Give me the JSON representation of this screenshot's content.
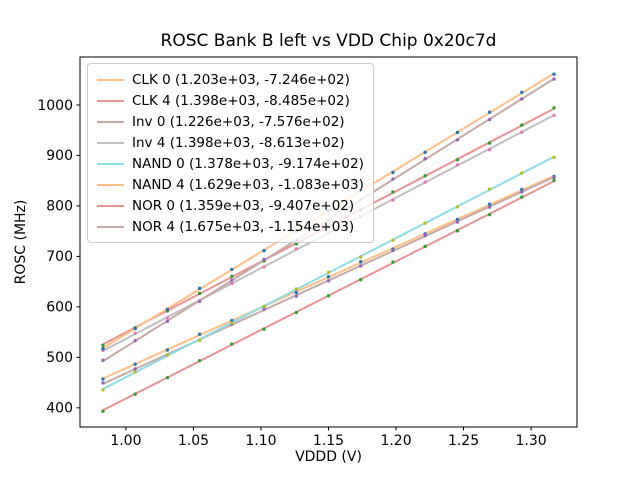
{
  "chart_data": {
    "type": "scatter",
    "title": "ROSC Bank B left vs VDD Chip 0x20c7d",
    "xlabel": "VDDD (V)",
    "ylabel": "ROSC (MHz)",
    "xlim": [
      0.966,
      1.334
    ],
    "ylim": [
      362,
      1095
    ],
    "x_ticks": [
      1.0,
      1.05,
      1.1,
      1.15,
      1.2,
      1.25,
      1.3
    ],
    "x_tick_labels": [
      "1.00",
      "1.05",
      "1.10",
      "1.15",
      "1.20",
      "1.25",
      "1.30"
    ],
    "y_ticks": [
      400,
      500,
      600,
      700,
      800,
      900,
      1000
    ],
    "y_tick_labels": [
      "400",
      "500",
      "600",
      "700",
      "800",
      "900",
      "1000"
    ],
    "grid": false,
    "legend_position": "upper left",
    "x_start": 0.983,
    "x_end": 1.317,
    "points_per_series": 15,
    "axis_color": "#000000",
    "legend_border_color": "#cccccc",
    "series": [
      {
        "name": "CLK 0",
        "legend_label": "CLK 0 (1.203e+03, -7.246e+02)",
        "slope": 1203.0,
        "intercept": -724.6,
        "line_color": "#ffbf86",
        "marker_color": "#1f77b4"
      },
      {
        "name": "CLK 4",
        "legend_label": "CLK 4 (1.398e+03, -8.485e+02)",
        "slope": 1398.0,
        "intercept": -848.5,
        "line_color": "#ea9393",
        "marker_color": "#2ca02c"
      },
      {
        "name": "Inv 0",
        "legend_label": "Inv 0 (1.226e+03, -7.576e+02)",
        "slope": 1226.0,
        "intercept": -757.6,
        "line_color": "#c5aaa5",
        "marker_color": "#9467bd"
      },
      {
        "name": "Inv 4",
        "legend_label": "Inv 4 (1.398e+03, -8.613e+02)",
        "slope": 1398.0,
        "intercept": -861.3,
        "line_color": "#bfbfbf",
        "marker_color": "#e377c2"
      },
      {
        "name": "NAND 0",
        "legend_label": "NAND 0 (1.378e+03, -9.174e+02)",
        "slope": 1378.0,
        "intercept": -917.4,
        "line_color": "#8bdee7",
        "marker_color": "#bcbd22"
      },
      {
        "name": "NAND 4",
        "legend_label": "NAND 4 (1.629e+03, -1.083e+03)",
        "slope": 1629.0,
        "intercept": -1083.0,
        "line_color": "#ffbf86",
        "marker_color": "#1f77b4"
      },
      {
        "name": "NOR 0",
        "legend_label": "NOR 0 (1.359e+03, -9.407e+02)",
        "slope": 1359.0,
        "intercept": -940.7,
        "line_color": "#ea9393",
        "marker_color": "#2ca02c"
      },
      {
        "name": "NOR 4",
        "legend_label": "NOR 4 (1.675e+03, -1.154e+03)",
        "slope": 1675.0,
        "intercept": -1154.0,
        "line_color": "#c5aaa5",
        "marker_color": "#9467bd"
      }
    ]
  }
}
